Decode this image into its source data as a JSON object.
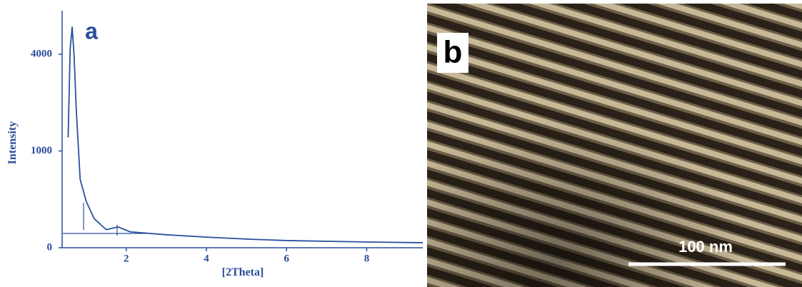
{
  "chart_data": {
    "type": "line",
    "panel_label": "a",
    "x_label": "[2Theta]",
    "y_label": "Intensity",
    "x": [
      0.55,
      0.6,
      0.65,
      0.7,
      0.75,
      0.85,
      1.0,
      1.2,
      1.5,
      1.8,
      2.1,
      3,
      4,
      5,
      6,
      8,
      9.4
    ],
    "values": [
      1300,
      4200,
      5200,
      3900,
      2100,
      500,
      230,
      90,
      35,
      46,
      27,
      18,
      12,
      8,
      5.5,
      3.5,
      2.7
    ],
    "color": "#2b4fa0",
    "yscale": "sqrt",
    "xlim": [
      0.4,
      9.4
    ],
    "xticks": [
      2,
      4,
      6,
      8
    ],
    "ylim": [
      0,
      6000
    ],
    "yticks": [
      0,
      1000,
      4000
    ]
  },
  "image_panel": {
    "label": "b",
    "scale_bar": "100 nm"
  }
}
